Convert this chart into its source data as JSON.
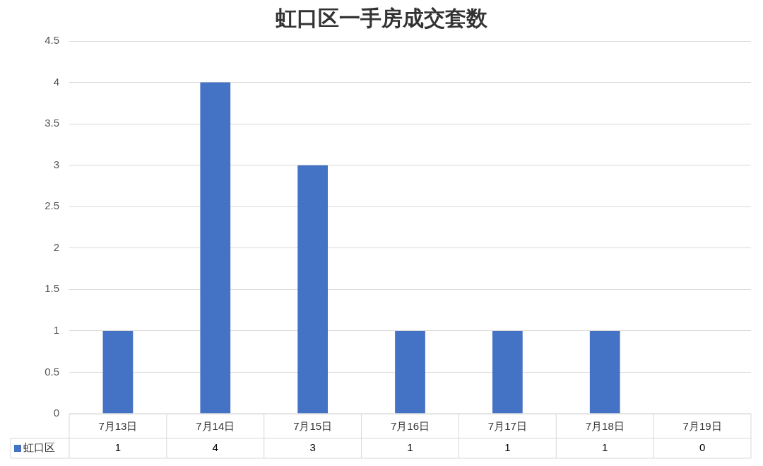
{
  "chart_data": {
    "type": "bar",
    "title": "虹口区一手房成交套数",
    "categories": [
      "7月13日",
      "7月14日",
      "7月15日",
      "7月16日",
      "7月17日",
      "7月18日",
      "7月19日"
    ],
    "series": [
      {
        "name": "虹口区",
        "color": "#4472c4",
        "values": [
          1,
          4,
          3,
          1,
          1,
          1,
          0
        ]
      }
    ],
    "ylim": [
      0,
      4.5
    ],
    "yticks": [
      0,
      0.5,
      1,
      1.5,
      2,
      2.5,
      3,
      3.5,
      4,
      4.5
    ],
    "grid": "y",
    "legend": "bottom",
    "data_labels": true
  }
}
